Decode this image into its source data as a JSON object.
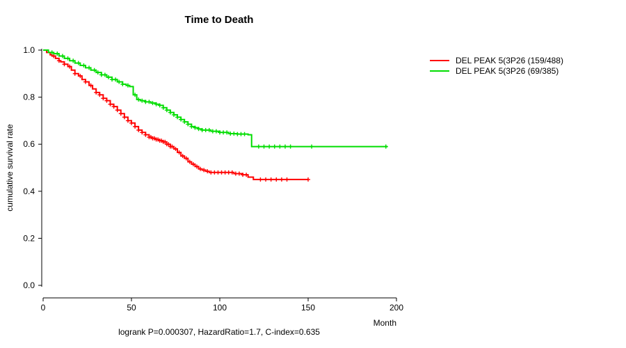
{
  "chart_data": {
    "type": "line",
    "subtype": "kaplan-meier-step",
    "title": "Time to Death",
    "xlabel": "Month",
    "ylabel": "cumulative survival rate",
    "annotation": "logrank P=0.000307, HazardRatio=1.7, C-index=0.635",
    "xlim": [
      0,
      200
    ],
    "ylim": [
      0.0,
      1.0
    ],
    "x_ticks": [
      0,
      50,
      100,
      150,
      200
    ],
    "y_ticks": [
      0.0,
      0.2,
      0.4,
      0.6,
      0.8,
      1.0
    ],
    "grid": false,
    "legend_position": "right-outside-top",
    "series": [
      {
        "name": "DEL PEAK  5(3P26 (159/488)",
        "color": "#ff0000",
        "events": "159/488",
        "points": [
          [
            0,
            1.0
          ],
          [
            2,
            0.99
          ],
          [
            4,
            0.98
          ],
          [
            5,
            0.975
          ],
          [
            7,
            0.965
          ],
          [
            9,
            0.955
          ],
          [
            10,
            0.95
          ],
          [
            12,
            0.94
          ],
          [
            14,
            0.93
          ],
          [
            16,
            0.915
          ],
          [
            18,
            0.9
          ],
          [
            20,
            0.89
          ],
          [
            22,
            0.875
          ],
          [
            24,
            0.865
          ],
          [
            26,
            0.85
          ],
          [
            28,
            0.835
          ],
          [
            30,
            0.82
          ],
          [
            32,
            0.81
          ],
          [
            34,
            0.795
          ],
          [
            36,
            0.785
          ],
          [
            38,
            0.77
          ],
          [
            40,
            0.76
          ],
          [
            42,
            0.745
          ],
          [
            44,
            0.73
          ],
          [
            46,
            0.715
          ],
          [
            48,
            0.7
          ],
          [
            50,
            0.69
          ],
          [
            52,
            0.675
          ],
          [
            54,
            0.66
          ],
          [
            56,
            0.65
          ],
          [
            58,
            0.64
          ],
          [
            60,
            0.63
          ],
          [
            62,
            0.625
          ],
          [
            64,
            0.62
          ],
          [
            66,
            0.615
          ],
          [
            68,
            0.61
          ],
          [
            70,
            0.6
          ],
          [
            72,
            0.59
          ],
          [
            74,
            0.58
          ],
          [
            76,
            0.565
          ],
          [
            78,
            0.55
          ],
          [
            80,
            0.54
          ],
          [
            82,
            0.525
          ],
          [
            84,
            0.515
          ],
          [
            86,
            0.505
          ],
          [
            88,
            0.495
          ],
          [
            90,
            0.49
          ],
          [
            92,
            0.485
          ],
          [
            94,
            0.48
          ],
          [
            108,
            0.475
          ],
          [
            113,
            0.47
          ],
          [
            116,
            0.46
          ],
          [
            119,
            0.45
          ],
          [
            150,
            0.45
          ]
        ],
        "censor_ticks": [
          6,
          9,
          12,
          15,
          18,
          21,
          24,
          27,
          30,
          32,
          34,
          36,
          38,
          40,
          42,
          44,
          46,
          48,
          50,
          52,
          54,
          56,
          58,
          60,
          61,
          62,
          63,
          64,
          65,
          66,
          67,
          68,
          69,
          70,
          71,
          72,
          73,
          75,
          77,
          79,
          81,
          83,
          85,
          87,
          89,
          91,
          93,
          95,
          97,
          99,
          101,
          103,
          105,
          107,
          109,
          111,
          113,
          115,
          123,
          126,
          129,
          132,
          135,
          138,
          150
        ]
      },
      {
        "name": "DEL PEAK  5(3P26 (69/385)",
        "color": "#00dd00",
        "events": "69/385",
        "points": [
          [
            0,
            1.0
          ],
          [
            3,
            0.99
          ],
          [
            6,
            0.985
          ],
          [
            9,
            0.975
          ],
          [
            12,
            0.965
          ],
          [
            15,
            0.955
          ],
          [
            18,
            0.945
          ],
          [
            21,
            0.935
          ],
          [
            24,
            0.925
          ],
          [
            27,
            0.915
          ],
          [
            30,
            0.905
          ],
          [
            33,
            0.895
          ],
          [
            36,
            0.885
          ],
          [
            39,
            0.875
          ],
          [
            42,
            0.865
          ],
          [
            45,
            0.855
          ],
          [
            47,
            0.85
          ],
          [
            49,
            0.845
          ],
          [
            51,
            0.81
          ],
          [
            53,
            0.79
          ],
          [
            55,
            0.785
          ],
          [
            58,
            0.78
          ],
          [
            61,
            0.775
          ],
          [
            64,
            0.77
          ],
          [
            66,
            0.765
          ],
          [
            68,
            0.755
          ],
          [
            70,
            0.745
          ],
          [
            72,
            0.735
          ],
          [
            74,
            0.725
          ],
          [
            76,
            0.715
          ],
          [
            78,
            0.705
          ],
          [
            80,
            0.695
          ],
          [
            82,
            0.685
          ],
          [
            84,
            0.675
          ],
          [
            86,
            0.67
          ],
          [
            88,
            0.665
          ],
          [
            90,
            0.66
          ],
          [
            95,
            0.655
          ],
          [
            100,
            0.65
          ],
          [
            105,
            0.645
          ],
          [
            110,
            0.643
          ],
          [
            116,
            0.64
          ],
          [
            118,
            0.59
          ],
          [
            195,
            0.59
          ]
        ],
        "censor_ticks": [
          5,
          8,
          11,
          14,
          17,
          20,
          23,
          26,
          29,
          31,
          33,
          35,
          37,
          39,
          41,
          43,
          45,
          48,
          52,
          54,
          56,
          58,
          60,
          62,
          64,
          66,
          68,
          70,
          72,
          74,
          76,
          78,
          80,
          82,
          84,
          86,
          88,
          90,
          92,
          94,
          96,
          98,
          100,
          102,
          104,
          106,
          108,
          110,
          112,
          114,
          122,
          125,
          128,
          131,
          134,
          137,
          140,
          152,
          194
        ]
      }
    ]
  }
}
